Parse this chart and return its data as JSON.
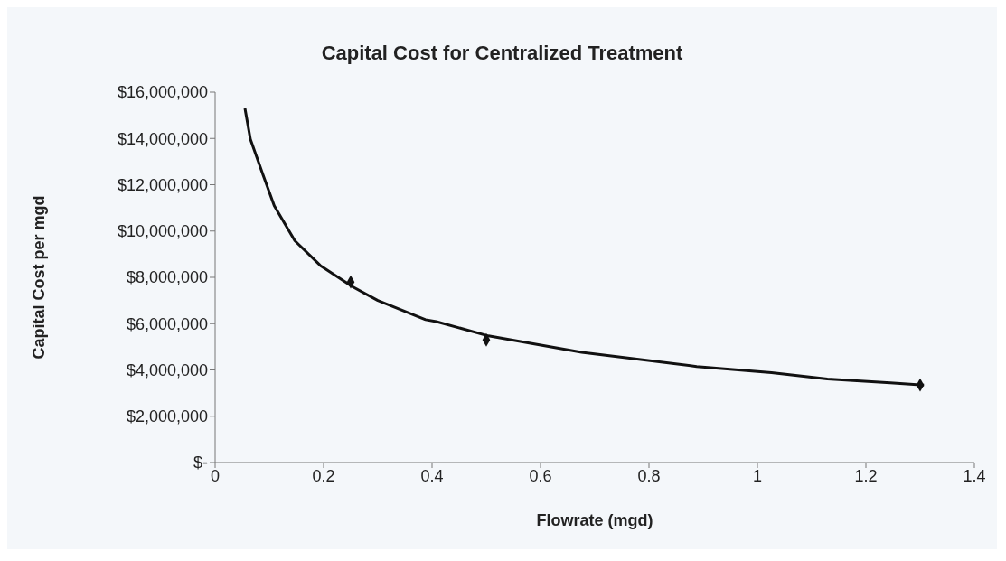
{
  "chart_data": {
    "type": "scatter",
    "title": "Capital Cost for Centralized Treatment",
    "xlabel": "Flowrate (mgd)",
    "ylabel": "Capital Cost per mgd",
    "xlim": [
      0,
      1.4
    ],
    "xticks": [
      0,
      0.2,
      0.4,
      0.6,
      0.8,
      1,
      1.2,
      1.4
    ],
    "ylim": [
      0,
      16000000
    ],
    "yticks": [
      {
        "value": 0,
        "label": "$-"
      },
      {
        "value": 2000000,
        "label": "$2,000,000"
      },
      {
        "value": 4000000,
        "label": "$4,000,000"
      },
      {
        "value": 6000000,
        "label": "$6,000,000"
      },
      {
        "value": 8000000,
        "label": "$8,000,000"
      },
      {
        "value": 10000000,
        "label": "$10,000,000"
      },
      {
        "value": 12000000,
        "label": "$12,000,000"
      },
      {
        "value": 14000000,
        "label": "$14,000,000"
      },
      {
        "value": 16000000,
        "label": "$16,000,000"
      }
    ],
    "grid": false,
    "marker": "diamond",
    "series": [
      {
        "color": "#111111",
        "x": [
          0.25,
          0.5,
          1.3
        ],
        "values": [
          7800000,
          5300000,
          3350000
        ]
      },
      {
        "type": "line",
        "color": "#111111",
        "marker": "none",
        "line_style": "solid",
        "x": [
          0.055,
          0.065,
          0.088,
          0.109,
          0.147,
          0.194,
          0.253,
          0.3,
          0.388,
          0.408,
          0.504,
          0.676,
          0.888,
          1.026,
          1.129,
          1.245,
          1.307
        ],
        "values": [
          15300000,
          13970000,
          12450000,
          11090000,
          9580000,
          8510000,
          7600000,
          7000000,
          6170000,
          6090000,
          5470000,
          4760000,
          4150000,
          3880000,
          3610000,
          3440000,
          3350000
        ]
      }
    ]
  }
}
